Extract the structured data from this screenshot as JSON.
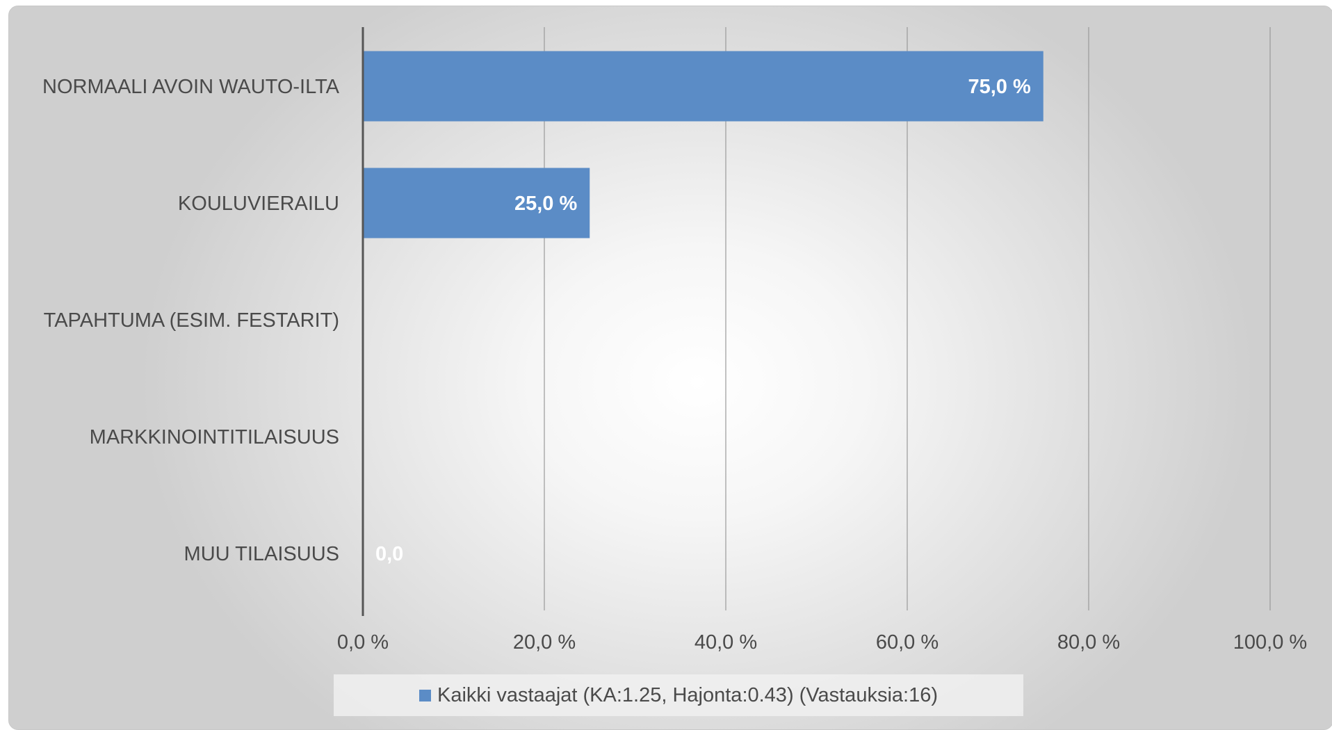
{
  "chart_data": {
    "type": "bar",
    "orientation": "horizontal",
    "categories": [
      "NORMAALI AVOIN WAUTO-ILTA",
      "KOULUVIERAILU",
      "TAPAHTUMA (ESIM. FESTARIT)",
      "MARKKINOINTITILAISUUS",
      "MUU TILAISUUS"
    ],
    "series": [
      {
        "name": "Kaikki vastaajat (KA:1.25, Hajonta:0.43) (Vastauksia:16)",
        "values": [
          75.0,
          25.0,
          0.0,
          0.0,
          0.0
        ],
        "data_labels": [
          "75,0 %",
          "25,0 %",
          "",
          "",
          "0,0"
        ],
        "color": "#5b8cc6"
      }
    ],
    "xlim": [
      0,
      100
    ],
    "x_ticks": [
      0,
      20,
      40,
      60,
      80,
      100
    ],
    "x_tick_labels": [
      "0,0 %",
      "20,0 %",
      "40,0 %",
      "60,0 %",
      "80,0 %",
      "100,0 %"
    ],
    "grid": true,
    "legend_position": "bottom",
    "colors": {
      "bar": "#5b8cc6",
      "gridline": "#9a9a9a",
      "axis": "#555555",
      "text": "#4a4a4a"
    }
  }
}
